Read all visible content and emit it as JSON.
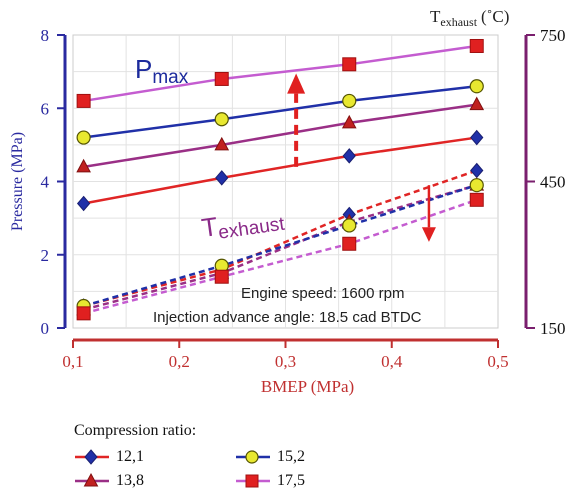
{
  "chart_data": {
    "type": "line",
    "xlabel": "BMEP (MPa)",
    "ylabel": "Pressure (MPa)",
    "y2label_main": "T",
    "y2label_sub": "exhaust",
    "y2label_unit": "(˚C)",
    "xlim": [
      0.1,
      0.5
    ],
    "ylim": [
      0,
      8
    ],
    "y2lim": [
      150,
      750
    ],
    "x_ticks": [
      "0,1",
      "0,2",
      "0,3",
      "0,4",
      "0,5"
    ],
    "y_ticks": [
      "0",
      "2",
      "4",
      "6",
      "8"
    ],
    "y2_ticks": [
      "150",
      "450",
      "750"
    ],
    "x": [
      0.11,
      0.24,
      0.36,
      0.48
    ],
    "pmax_series": [
      {
        "name": "12,1",
        "values": [
          3.4,
          4.1,
          4.7,
          5.2
        ]
      },
      {
        "name": "13,8",
        "values": [
          4.4,
          5.0,
          5.6,
          6.1
        ]
      },
      {
        "name": "15,2",
        "values": [
          5.2,
          5.7,
          6.2,
          6.6
        ]
      },
      {
        "name": "17,5",
        "values": [
          6.2,
          6.8,
          7.2,
          7.7
        ]
      }
    ],
    "texhaust_series": [
      {
        "name": "12,1",
        "values": [
          0.6,
          1.6,
          3.1,
          4.3
        ]
      },
      {
        "name": "13,8",
        "values": [
          0.5,
          1.5,
          2.9,
          3.9
        ]
      },
      {
        "name": "15,2",
        "values": [
          0.6,
          1.7,
          2.8,
          3.9
        ]
      },
      {
        "name": "17,5",
        "values": [
          0.4,
          1.4,
          2.3,
          3.5
        ]
      }
    ],
    "annotations": {
      "pmax_main": "P",
      "pmax_sub": "max",
      "texhaust_main": "T",
      "texhaust_sub": "exhaust",
      "engine_speed": "Engine speed: 1600 rpm",
      "injection": "Injection advance angle:  18.5 cad BTDC"
    },
    "legend_title": "Compression ratio:",
    "colors": {
      "12,1": "#e02525",
      "13,8": "#9a2f86",
      "15,2": "#2030a8",
      "17,5": "#c45cd0",
      "axis_left": "#2a2aa0",
      "axis_right": "#7a1f6e",
      "axis_bottom": "#c03030",
      "arrow": "#e02020"
    },
    "grid": true
  },
  "legend": {
    "title": "Compression ratio:",
    "items": [
      {
        "label": "12,1",
        "marker": "diamond",
        "color": "#2030a8",
        "line": "#e02525"
      },
      {
        "label": "15,2",
        "marker": "circle",
        "color": "#e8e830",
        "line": "#2030a8"
      },
      {
        "label": "13,8",
        "marker": "triangle",
        "color": "#c02020",
        "line": "#9a2f86"
      },
      {
        "label": "17,5",
        "marker": "square",
        "color": "#e02020",
        "line": "#c45cd0"
      }
    ]
  }
}
